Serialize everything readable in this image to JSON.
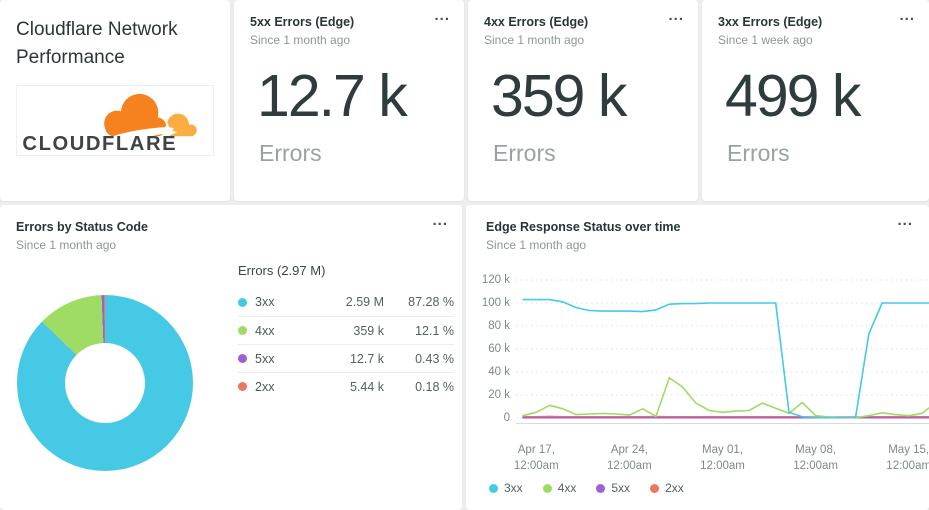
{
  "menu_icon": "...",
  "cards": {
    "summary": {
      "title": "Cloudflare Network Performance",
      "logo_text": "CLOUDFLARE"
    },
    "metrics": [
      {
        "title": "5xx Errors (Edge)",
        "subtitle": "Since 1 month ago",
        "value": "12.7 k",
        "unit": "Errors"
      },
      {
        "title": "4xx Errors (Edge)",
        "subtitle": "Since 1 month ago",
        "value": "359 k",
        "unit": "Errors"
      },
      {
        "title": "3xx Errors (Edge)",
        "subtitle": "Since 1 week ago",
        "value": "499 k",
        "unit": "Errors"
      }
    ],
    "pie": {
      "title": "Errors by Status Code",
      "subtitle": "Since 1 month ago"
    },
    "timeseries": {
      "title": "Edge Response Status over time",
      "subtitle": "Since 1 month ago"
    }
  },
  "chart_data": [
    {
      "type": "pie",
      "title": "Errors by Status Code",
      "legend_header": "Errors (2.97 M)",
      "total": "2.97 M",
      "slices": [
        {
          "label": "3xx",
          "value": "2.59 M",
          "pct": "87.28 %",
          "pct_num": 87.28,
          "color": "#45C9E5"
        },
        {
          "label": "4xx",
          "value": "359 k",
          "pct": "12.1 %",
          "pct_num": 12.1,
          "color": "#9EDC64"
        },
        {
          "label": "5xx",
          "value": "12.7 k",
          "pct": "0.43 %",
          "pct_num": 0.43,
          "color": "#A05FCF"
        },
        {
          "label": "2xx",
          "value": "5.44 k",
          "pct": "0.18 %",
          "pct_num": 0.18,
          "color": "#F0765A"
        }
      ]
    },
    {
      "type": "line",
      "title": "Edge Response Status over time",
      "subtitle": "Since 1 month ago",
      "unit": "k",
      "ylim": [
        0,
        120
      ],
      "grid": "dotted horizontal",
      "legend_position": "bottom",
      "yticks": [
        {
          "label": "120 k",
          "v": 120
        },
        {
          "label": "100 k",
          "v": 100
        },
        {
          "label": "80 k",
          "v": 80
        },
        {
          "label": "60 k",
          "v": 60
        },
        {
          "label": "40 k",
          "v": 40
        },
        {
          "label": "20 k",
          "v": 20
        },
        {
          "label": "0",
          "v": 0
        }
      ],
      "xticks": [
        {
          "label": "Apr 17,\n12:00am",
          "i": 1
        },
        {
          "label": "Apr 24,\n12:00am",
          "i": 8
        },
        {
          "label": "May 01,\n12:00am",
          "i": 15
        },
        {
          "label": "May 08,\n12:00am",
          "i": 22
        },
        {
          "label": "May 15,\n12:00am",
          "i": 29
        }
      ],
      "series": [
        {
          "name": "3xx",
          "color": "#45C9E5",
          "values": [
            103,
            103,
            103,
            101,
            96,
            93.5,
            93,
            93,
            93,
            92.5,
            94,
            99,
            99.5,
            99.5,
            100,
            100,
            100,
            100,
            100,
            100,
            5,
            1,
            0.4,
            0.3,
            0.3,
            0.3,
            73,
            100,
            100,
            100,
            100,
            100
          ]
        },
        {
          "name": "4xx",
          "color": "#9EDC64",
          "values": [
            2,
            5,
            11,
            8,
            3,
            3.5,
            4,
            3.5,
            2.5,
            8,
            1.5,
            35,
            27,
            13,
            6.5,
            5,
            6,
            6.5,
            13,
            8.5,
            4,
            13.5,
            2,
            0.8,
            0.3,
            0.3,
            2,
            4.5,
            3,
            2,
            4,
            13
          ]
        },
        {
          "name": "5xx",
          "color": "#A05FCF",
          "values": [
            0.3,
            0.3,
            0.3,
            0.3,
            0.3,
            0.3,
            0.3,
            0.3,
            0.3,
            0.3,
            0.3,
            0.3,
            0.3,
            0.3,
            0.3,
            0.3,
            0.3,
            0.3,
            0.3,
            0.3,
            0.3,
            0.3,
            0.3,
            0.3,
            0.3,
            0.3,
            0.3,
            0.3,
            0.3,
            0.3,
            0.3,
            0.3
          ]
        },
        {
          "name": "2xx",
          "color": "#F0765A",
          "values": [
            1,
            1,
            1.4,
            1,
            1,
            1,
            1,
            1,
            1,
            1,
            1.2,
            1,
            1,
            1,
            1,
            1,
            1,
            1,
            1,
            1,
            1,
            1,
            0.8,
            0.8,
            0.8,
            0.8,
            1,
            1,
            1,
            1.3,
            1,
            1
          ]
        }
      ]
    }
  ]
}
